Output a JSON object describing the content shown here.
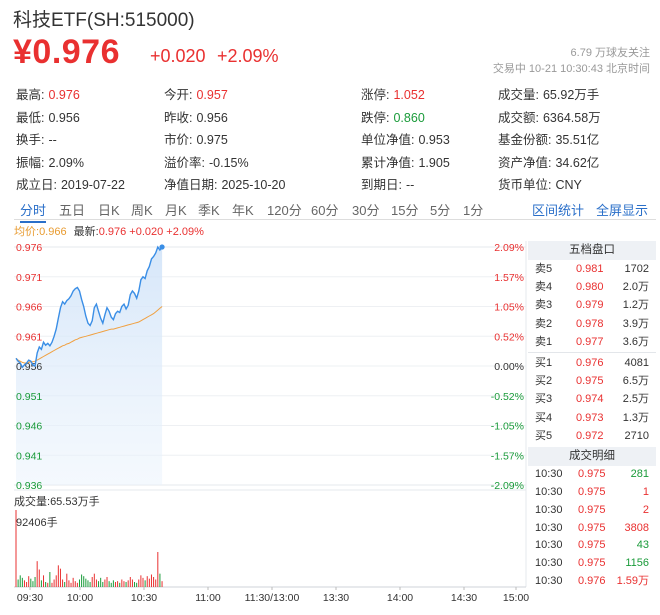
{
  "header": {
    "title": "科技ETF(SH:515000)",
    "price": "¥0.976",
    "change": "+0.020",
    "change_pct": "+2.09%",
    "followers": "6.79 万球友关注",
    "status": "交易中 10-21 10:30:43 北京时间"
  },
  "quote": [
    [
      {
        "label": "最高:",
        "value": "0.976",
        "tone": "red"
      },
      {
        "label": "今开:",
        "value": "0.957",
        "tone": "red"
      },
      {
        "label": "涨停:",
        "value": "1.052",
        "tone": "red"
      },
      {
        "label": "成交量:",
        "value": "65.92万手",
        "tone": "dark"
      }
    ],
    [
      {
        "label": "最低:",
        "value": "0.956",
        "tone": "dark"
      },
      {
        "label": "昨收:",
        "value": "0.956",
        "tone": "dark"
      },
      {
        "label": "跌停:",
        "value": "0.860",
        "tone": "green"
      },
      {
        "label": "成交额:",
        "value": "6364.58万",
        "tone": "dark"
      }
    ],
    [
      {
        "label": "换手:",
        "value": "--",
        "tone": "dark"
      },
      {
        "label": "市价:",
        "value": "0.975",
        "tone": "dark"
      },
      {
        "label": "单位净值:",
        "value": "0.953",
        "tone": "dark"
      },
      {
        "label": "基金份额:",
        "value": "35.51亿",
        "tone": "dark"
      }
    ],
    [
      {
        "label": "振幅:",
        "value": "2.09%",
        "tone": "dark"
      },
      {
        "label": "溢价率:",
        "value": "-0.15%",
        "tone": "dark"
      },
      {
        "label": "累计净值:",
        "value": "1.905",
        "tone": "dark"
      },
      {
        "label": "资产净值:",
        "value": "34.62亿",
        "tone": "dark"
      }
    ],
    [
      {
        "label": "成立日:",
        "value": "2019-07-22",
        "tone": "dark"
      },
      {
        "label": "净值日期:",
        "value": "2025-10-20",
        "tone": "dark"
      },
      {
        "label": "到期日:",
        "value": "--",
        "tone": "dark"
      },
      {
        "label": "货币单位:",
        "value": "CNY",
        "tone": "dark"
      }
    ]
  ],
  "tabs": [
    "分时",
    "五日",
    "日K",
    "周K",
    "月K",
    "季K",
    "年K",
    "120分",
    "60分",
    "30分",
    "15分",
    "5分",
    "1分"
  ],
  "active_tab": "分时",
  "links": {
    "stats": "区间统计",
    "fullscreen": "全屏显示"
  },
  "legend": {
    "avg_label": "均价:",
    "avg_value": "0.966",
    "last_label": "最新:",
    "last_value": "0.976 +0.020 +2.09%"
  },
  "volume": {
    "label": "成交量:",
    "value": "65.53万手",
    "max_label": "92406手"
  },
  "order_book": {
    "title": "五档盘口",
    "asks": [
      {
        "label": "卖5",
        "price": "0.981",
        "vol": "1702"
      },
      {
        "label": "卖4",
        "price": "0.980",
        "vol": "2.0万"
      },
      {
        "label": "卖3",
        "price": "0.979",
        "vol": "1.2万"
      },
      {
        "label": "卖2",
        "price": "0.978",
        "vol": "3.9万"
      },
      {
        "label": "卖1",
        "price": "0.977",
        "vol": "3.6万"
      }
    ],
    "bids": [
      {
        "label": "买1",
        "price": "0.976",
        "vol": "4081"
      },
      {
        "label": "买2",
        "price": "0.975",
        "vol": "6.5万"
      },
      {
        "label": "买3",
        "price": "0.974",
        "vol": "2.5万"
      },
      {
        "label": "买4",
        "price": "0.973",
        "vol": "1.3万"
      },
      {
        "label": "买5",
        "price": "0.972",
        "vol": "2710"
      }
    ]
  },
  "trades": {
    "title": "成交明细",
    "rows": [
      {
        "time": "10:30",
        "price": "0.975",
        "vol": "281",
        "side": "buy"
      },
      {
        "time": "10:30",
        "price": "0.975",
        "vol": "1",
        "side": "sell"
      },
      {
        "time": "10:30",
        "price": "0.975",
        "vol": "2",
        "side": "sell"
      },
      {
        "time": "10:30",
        "price": "0.975",
        "vol": "3808",
        "side": "sell"
      },
      {
        "time": "10:30",
        "price": "0.975",
        "vol": "43",
        "side": "buy"
      },
      {
        "time": "10:30",
        "price": "0.975",
        "vol": "1156",
        "side": "buy"
      },
      {
        "time": "10:30",
        "price": "0.976",
        "vol": "1.59万",
        "side": "sell"
      }
    ]
  },
  "colors": {
    "up": "#e93030",
    "down": "#1a9b3a",
    "line": "#3a8ee6",
    "avg": "#f0a040",
    "accent": "#2a6fc9"
  },
  "chart_data": {
    "type": "line",
    "prev_close": 0.956,
    "ylim": [
      0.936,
      0.976
    ],
    "y_ticks": [
      "0.976",
      "0.971",
      "0.966",
      "0.961",
      "0.956",
      "0.951",
      "0.946",
      "0.941",
      "0.936"
    ],
    "pct_ticks": [
      "2.09%",
      "1.57%",
      "1.05%",
      "0.52%",
      "0.00%",
      "-0.52%",
      "-1.05%",
      "-1.57%",
      "-2.09%"
    ],
    "x_ticks": [
      "09:30",
      "10:00",
      "10:30",
      "11:00",
      "11:30/13:00",
      "13:30",
      "14:00",
      "14:30",
      "15:00"
    ],
    "total_minutes": 240,
    "series": [
      {
        "name": "最新",
        "values": [
          0.9573,
          0.9568,
          0.9565,
          0.9558,
          0.9562,
          0.9565,
          0.957,
          0.9568,
          0.9562,
          0.956,
          0.9582,
          0.9592,
          0.9588,
          0.96,
          0.9595,
          0.9598,
          0.9594,
          0.96,
          0.961,
          0.9622,
          0.964,
          0.9658,
          0.9668,
          0.9664,
          0.967,
          0.9673,
          0.9678,
          0.9686,
          0.969,
          0.9692,
          0.9686,
          0.9672,
          0.966,
          0.9644,
          0.9632,
          0.9628,
          0.9636,
          0.9658,
          0.9664,
          0.9652,
          0.964,
          0.9632,
          0.9646,
          0.9658,
          0.9652,
          0.9642,
          0.9638,
          0.9648,
          0.9652,
          0.965,
          0.966,
          0.9664,
          0.9656,
          0.9662,
          0.968,
          0.9686,
          0.9682,
          0.9674,
          0.9686,
          0.9705,
          0.971,
          0.9707,
          0.972,
          0.9727,
          0.974,
          0.9744,
          0.975,
          0.976,
          0.9755,
          0.976
        ]
      },
      {
        "name": "均价",
        "values": [
          0.9573,
          0.957,
          0.9568,
          0.9566,
          0.9565,
          0.9565,
          0.9566,
          0.9567,
          0.9567,
          0.9568,
          0.957,
          0.9572,
          0.9574,
          0.9576,
          0.9578,
          0.958,
          0.9582,
          0.9584,
          0.9586,
          0.9588,
          0.959,
          0.9592,
          0.9594,
          0.9595,
          0.9597,
          0.9598,
          0.96,
          0.9602,
          0.9604,
          0.9605,
          0.9607,
          0.9608,
          0.9609,
          0.961,
          0.9611,
          0.9612,
          0.9613,
          0.9614,
          0.9615,
          0.9616,
          0.9617,
          0.9618,
          0.9619,
          0.962,
          0.9621,
          0.9622,
          0.9622,
          0.9623,
          0.9624,
          0.9625,
          0.9626,
          0.9627,
          0.9628,
          0.9629,
          0.963,
          0.9631,
          0.9632,
          0.9633,
          0.9634,
          0.9636,
          0.9638,
          0.964,
          0.9642,
          0.9644,
          0.9646,
          0.9648,
          0.9651,
          0.9654,
          0.9657,
          0.966
        ]
      }
    ],
    "volumes": [
      92406,
      9000,
      14000,
      11000,
      8000,
      6000,
      13000,
      10000,
      7000,
      12000,
      31000,
      21000,
      8000,
      14000,
      6000,
      5000,
      18000,
      5000,
      9000,
      14000,
      26000,
      22000,
      9000,
      6000,
      16000,
      8000,
      5000,
      11000,
      7000,
      5000,
      9000,
      15000,
      13000,
      10000,
      8000,
      6000,
      12000,
      16000,
      9000,
      7000,
      11000,
      6000,
      9000,
      12000,
      7000,
      5000,
      8000,
      6000,
      7000,
      5000,
      9000,
      7000,
      6000,
      8000,
      12000,
      9000,
      6000,
      5000,
      9000,
      14000,
      11000,
      8000,
      13000,
      10000,
      15000,
      12000,
      9000,
      42000,
      16000,
      7000
    ]
  }
}
